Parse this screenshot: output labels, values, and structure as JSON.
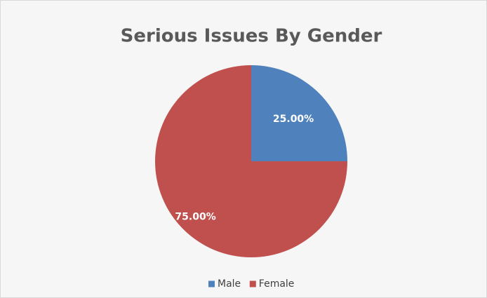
{
  "chart_data": {
    "type": "pie",
    "title": "Serious Issues By Gender",
    "categories": [
      "Male",
      "Female"
    ],
    "values": [
      25,
      75
    ],
    "value_labels": [
      "25.00%",
      "75.00%"
    ],
    "colors": [
      "#4f81bd",
      "#c0504d"
    ],
    "legend": "bottom"
  }
}
